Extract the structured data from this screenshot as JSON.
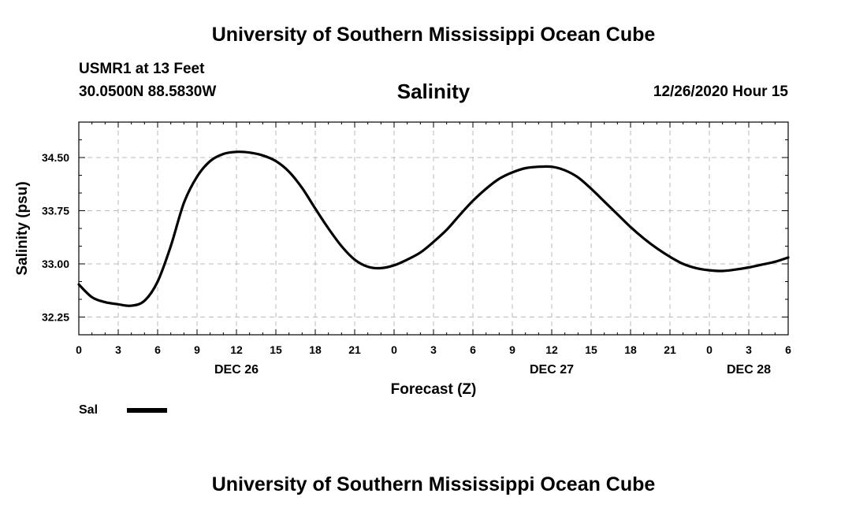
{
  "header": {
    "title": "University of Southern Mississippi Ocean Cube",
    "station": "USMR1 at 13 Feet",
    "coords": "30.0500N 88.5830W",
    "variable": "Salinity",
    "forecast_time": "12/26/2020 Hour 15"
  },
  "footer": {
    "title": "University of Southern Mississippi Ocean Cube"
  },
  "chart_data": {
    "type": "line",
    "title": "Salinity",
    "xlabel": "Forecast (Z)",
    "ylabel": "Salinity (psu)",
    "xlim": [
      0,
      54
    ],
    "ylim": [
      32.0,
      35.0
    ],
    "grid": true,
    "x_ticks": [
      0,
      3,
      6,
      9,
      12,
      15,
      18,
      21,
      24,
      27,
      30,
      33,
      36,
      39,
      42,
      45,
      48,
      51,
      54
    ],
    "x_tick_labels": [
      "0",
      "3",
      "6",
      "9",
      "12",
      "15",
      "18",
      "21",
      "0",
      "3",
      "6",
      "9",
      "12",
      "15",
      "18",
      "21",
      "0",
      "3",
      "6"
    ],
    "day_labels": [
      {
        "x": 12,
        "label": "DEC 26"
      },
      {
        "x": 36,
        "label": "DEC 27"
      },
      {
        "x": 51,
        "label": "DEC 28"
      }
    ],
    "y_ticks": [
      32.25,
      33.0,
      33.75,
      34.5
    ],
    "y_tick_labels": [
      "32.25",
      "33.00",
      "33.75",
      "34.50"
    ],
    "legend": {
      "position": "bottom-left"
    },
    "series": [
      {
        "name": "Sal",
        "color": "#000000",
        "x": [
          0,
          1,
          2,
          3,
          4,
          5,
          6,
          7,
          8,
          9,
          10,
          11,
          12,
          13,
          14,
          15,
          16,
          17,
          18,
          19,
          20,
          21,
          22,
          23,
          24,
          25,
          26,
          27,
          28,
          29,
          30,
          31,
          32,
          33,
          34,
          35,
          36,
          37,
          38,
          39,
          40,
          41,
          42,
          43,
          44,
          45,
          46,
          47,
          48,
          49,
          50,
          51,
          52,
          53,
          54
        ],
        "values": [
          32.71,
          32.53,
          32.46,
          32.43,
          32.41,
          32.48,
          32.75,
          33.25,
          33.86,
          34.23,
          34.45,
          34.55,
          34.58,
          34.57,
          34.53,
          34.45,
          34.3,
          34.07,
          33.78,
          33.5,
          33.25,
          33.06,
          32.96,
          32.94,
          32.98,
          33.06,
          33.16,
          33.31,
          33.48,
          33.69,
          33.89,
          34.06,
          34.2,
          34.29,
          34.35,
          34.37,
          34.37,
          34.32,
          34.22,
          34.06,
          33.88,
          33.7,
          33.52,
          33.36,
          33.22,
          33.1,
          33.0,
          32.94,
          32.91,
          32.9,
          32.92,
          32.95,
          32.99,
          33.03,
          33.09
        ]
      }
    ]
  }
}
